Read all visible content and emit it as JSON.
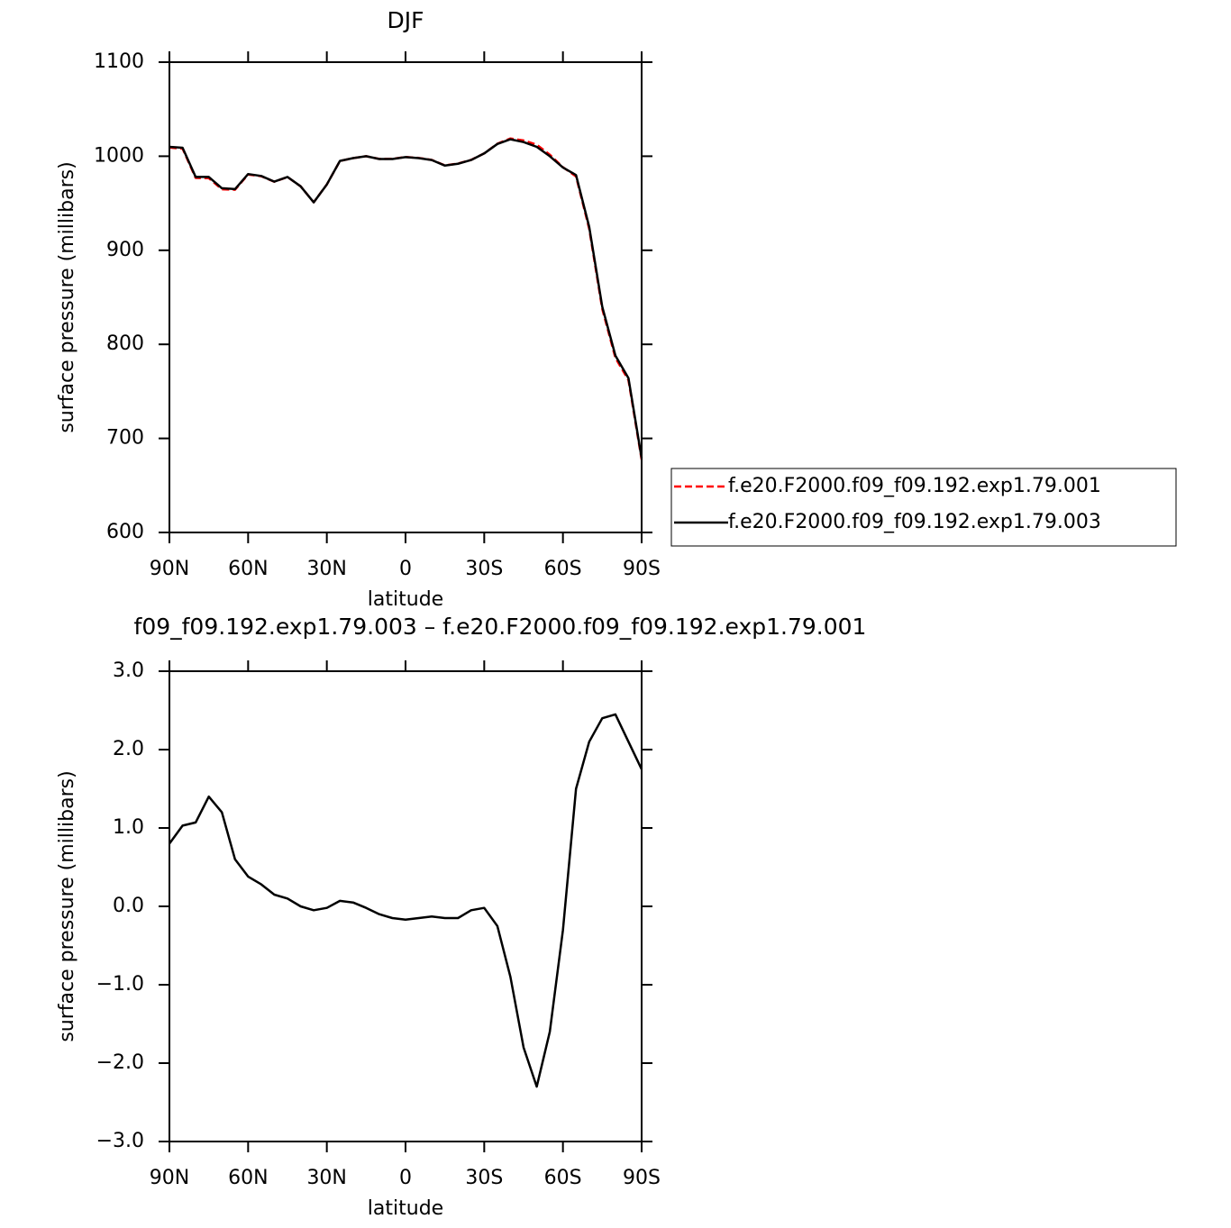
{
  "chart_data": [
    {
      "type": "line",
      "title": "DJF",
      "xlabel": "latitude",
      "ylabel": "surface pressure (millibars)",
      "x": [
        90,
        85,
        80,
        75,
        70,
        65,
        60,
        55,
        50,
        45,
        40,
        35,
        30,
        25,
        20,
        15,
        10,
        5,
        0,
        -5,
        -10,
        -15,
        -20,
        -25,
        -30,
        -35,
        -40,
        -45,
        -50,
        -55,
        -60,
        -65,
        -70,
        -75,
        -80,
        -85,
        -90
      ],
      "xlim": [
        90,
        -90
      ],
      "xticks": [
        {
          "value": 90,
          "label": "90N"
        },
        {
          "value": 60,
          "label": "60N"
        },
        {
          "value": 30,
          "label": "30N"
        },
        0,
        {
          "value": -30,
          "label": "30S"
        },
        {
          "value": -60,
          "label": "60S"
        },
        {
          "value": -90,
          "label": "90S"
        }
      ],
      "ylim": [
        600,
        1100
      ],
      "yticks": [
        600,
        700,
        800,
        900,
        1000,
        1100
      ],
      "legend": "right",
      "series": [
        {
          "name": "f.e20.F2000.f09_f09.192.exp1.79.001",
          "color": "#ff0000",
          "linestyle": "dashed",
          "values": [
            1009.2,
            1008.0,
            976.9,
            976.6,
            964.8,
            964.4,
            980.6,
            978.7,
            972.9,
            977.9,
            968.0,
            951.1,
            970.0,
            994.9,
            998.0,
            1000.0,
            997.1,
            997.2,
            999.2,
            998.2,
            996.1,
            990.2,
            992.2,
            996.1,
            1003.0,
            1013.3,
            1018.9,
            1016.8,
            1012.3,
            1001.6,
            988.3,
            978.5,
            922.9,
            837.6,
            785.6,
            761.9,
            677.3
          ]
        },
        {
          "name": "f.e20.F2000.f09_f09.192.exp1.79.003",
          "color": "#000000",
          "linestyle": "solid",
          "values": [
            1010,
            1009,
            978,
            978,
            966,
            965,
            981,
            979,
            973,
            978,
            968,
            951,
            970,
            995,
            998,
            1000,
            997,
            997,
            999,
            998,
            996,
            990,
            992,
            996,
            1003,
            1013,
            1018,
            1015,
            1010,
            1000,
            988,
            980,
            925,
            840,
            788,
            764,
            679
          ]
        }
      ]
    },
    {
      "type": "line",
      "title": "f09_f09.192.exp1.79.003 – f.e20.F2000.f09_f09.192.exp1.79.001",
      "xlabel": "latitude",
      "ylabel": "surface pressure (millibars)",
      "x": [
        90,
        85,
        80,
        75,
        70,
        65,
        60,
        55,
        50,
        45,
        40,
        35,
        30,
        25,
        20,
        15,
        10,
        5,
        0,
        -5,
        -10,
        -15,
        -20,
        -25,
        -30,
        -35,
        -40,
        -45,
        -50,
        -55,
        -60,
        -65,
        -70,
        -75,
        -80,
        -85,
        -90
      ],
      "xlim": [
        90,
        -90
      ],
      "xticks": [
        {
          "value": 90,
          "label": "90N"
        },
        {
          "value": 60,
          "label": "60N"
        },
        {
          "value": 30,
          "label": "30N"
        },
        0,
        {
          "value": -30,
          "label": "30S"
        },
        {
          "value": -60,
          "label": "60S"
        },
        {
          "value": -90,
          "label": "90S"
        }
      ],
      "ylim": [
        -3,
        3
      ],
      "yticks": [
        {
          "value": -3,
          "label": "−3.0"
        },
        {
          "value": -2,
          "label": "−2.0"
        },
        {
          "value": -1,
          "label": "−1.0"
        },
        {
          "value": 0,
          "label": "0.0"
        },
        {
          "value": 1,
          "label": "1.0"
        },
        {
          "value": 2,
          "label": "2.0"
        },
        {
          "value": 3,
          "label": "3.0"
        }
      ],
      "series": [
        {
          "color": "#000000",
          "linestyle": "solid",
          "values": [
            0.8,
            1.03,
            1.07,
            1.4,
            1.2,
            0.6,
            0.38,
            0.28,
            0.15,
            0.1,
            0.0,
            -0.05,
            -0.02,
            0.07,
            0.05,
            -0.02,
            -0.1,
            -0.15,
            -0.17,
            -0.15,
            -0.13,
            -0.15,
            -0.15,
            -0.05,
            -0.02,
            -0.25,
            -0.9,
            -1.8,
            -2.3,
            -1.6,
            -0.3,
            1.5,
            2.1,
            2.4,
            2.45,
            2.1,
            1.75
          ]
        }
      ]
    }
  ]
}
